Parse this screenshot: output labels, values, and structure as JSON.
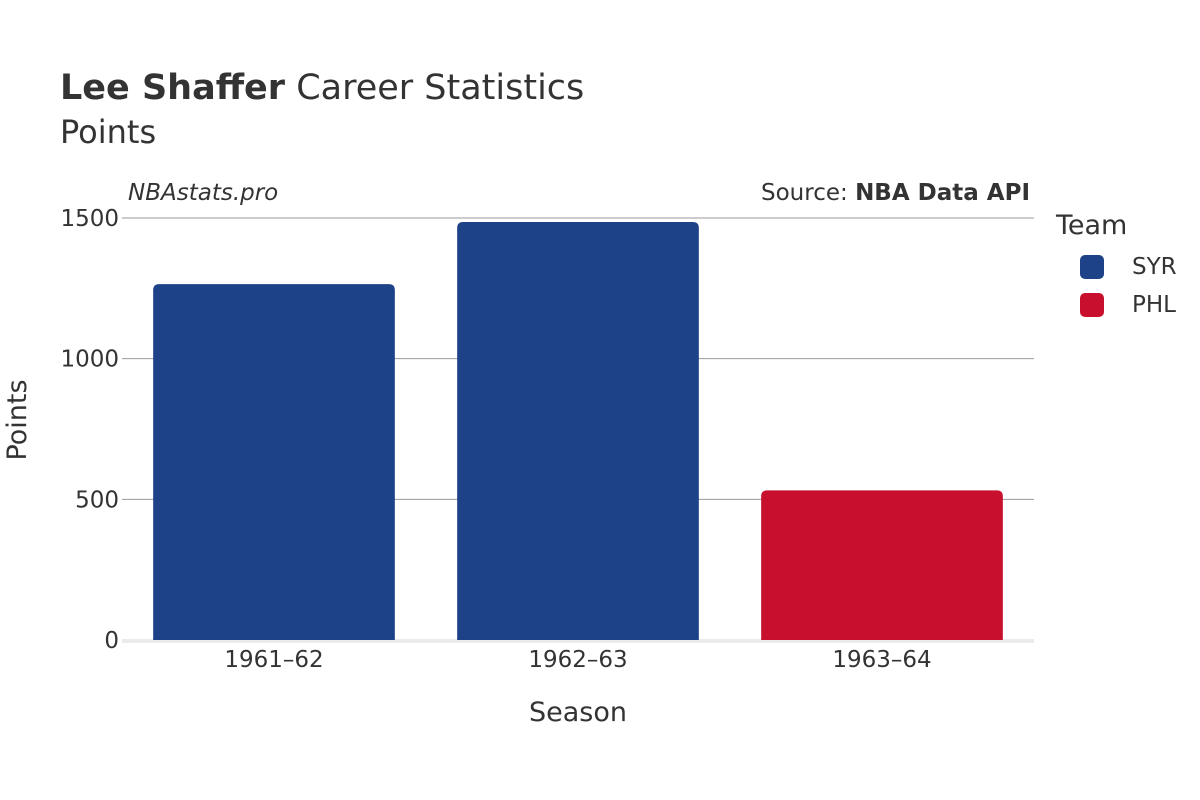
{
  "header": {
    "player_name": "Lee Shaffer",
    "title_suffix": "Career Statistics",
    "subtitle": "Points"
  },
  "watermark": "NBAstats.pro",
  "source": {
    "prefix": "Source: ",
    "name": "NBA Data API"
  },
  "legend": {
    "title": "Team",
    "items": [
      {
        "label": "SYR",
        "color": "#1d4287"
      },
      {
        "label": "PHL",
        "color": "#c8102e"
      }
    ]
  },
  "chart_data": {
    "type": "bar",
    "title": "Lee Shaffer Career Statistics",
    "subtitle": "Points",
    "xlabel": "Season",
    "ylabel": "Points",
    "categories": [
      "1961–62",
      "1962–63",
      "1963–64"
    ],
    "values": [
      1265,
      1486,
      532
    ],
    "teams": [
      "SYR",
      "SYR",
      "PHL"
    ],
    "colors": [
      "#1d4287",
      "#1d4287",
      "#c8102e"
    ],
    "ylim": [
      0,
      1500
    ],
    "yticks": [
      0,
      500,
      1000,
      1500
    ],
    "grid": true,
    "legend_position": "right"
  }
}
